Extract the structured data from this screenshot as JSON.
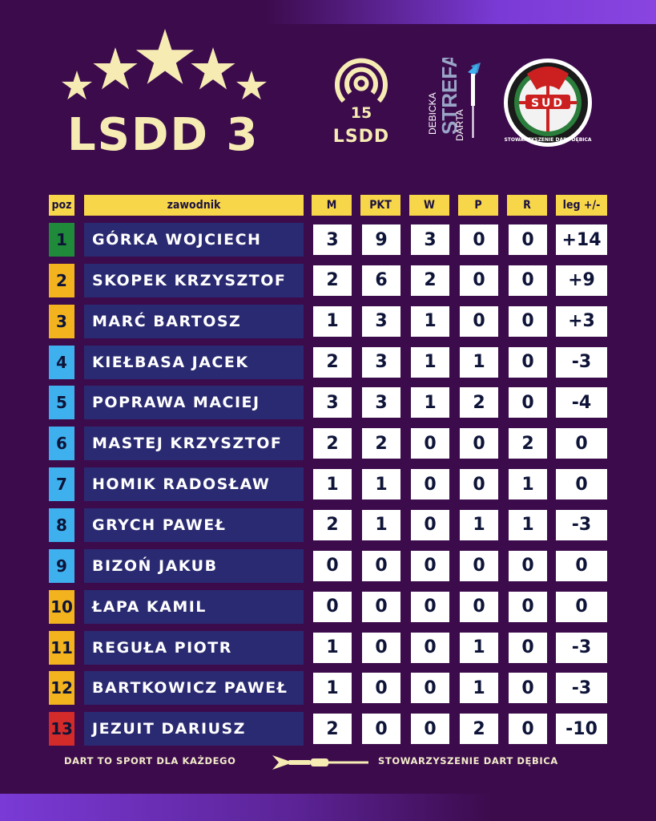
{
  "header": {
    "title": "LSDD 3",
    "logo_lsdd15": {
      "number": "15",
      "label": "LSDD"
    },
    "logo_strefa": {
      "word1": "DEBICKA",
      "word2": "STREFA",
      "word3": "DARTA"
    },
    "logo_sdd": {
      "letters": "SUD",
      "ring_text": "STOWARZYSZENIE DART DĘBICA"
    }
  },
  "table": {
    "headers": {
      "pos": "poz",
      "player": "zawodnik",
      "m": "M",
      "pkt": "PKT",
      "w": "W",
      "p": "P",
      "r": "R",
      "leg": "leg +/-"
    },
    "rows": [
      {
        "pos": "1",
        "name": "GÓRKA WOJCIECH",
        "m": "3",
        "pkt": "9",
        "w": "3",
        "p": "0",
        "r": "0",
        "leg": "+14",
        "pos_color": "#1f8a3a"
      },
      {
        "pos": "2",
        "name": "SKOPEK KRZYSZTOF",
        "m": "2",
        "pkt": "6",
        "w": "2",
        "p": "0",
        "r": "0",
        "leg": "+9",
        "pos_color": "#f2b31e"
      },
      {
        "pos": "3",
        "name": "MARĆ BARTOSZ",
        "m": "1",
        "pkt": "3",
        "w": "1",
        "p": "0",
        "r": "0",
        "leg": "+3",
        "pos_color": "#f2b31e"
      },
      {
        "pos": "4",
        "name": "KIEŁBASA JACEK",
        "m": "2",
        "pkt": "3",
        "w": "1",
        "p": "1",
        "r": "0",
        "leg": "-3",
        "pos_color": "#3fb0ee"
      },
      {
        "pos": "5",
        "name": "POPRAWA MACIEJ",
        "m": "3",
        "pkt": "3",
        "w": "1",
        "p": "2",
        "r": "0",
        "leg": "-4",
        "pos_color": "#3fb0ee"
      },
      {
        "pos": "6",
        "name": "MASTEJ KRZYSZTOF",
        "m": "2",
        "pkt": "2",
        "w": "0",
        "p": "0",
        "r": "2",
        "leg": "0",
        "pos_color": "#3fb0ee"
      },
      {
        "pos": "7",
        "name": "HOMIK RADOSŁAW",
        "m": "1",
        "pkt": "1",
        "w": "0",
        "p": "0",
        "r": "1",
        "leg": "0",
        "pos_color": "#3fb0ee"
      },
      {
        "pos": "8",
        "name": "GRYCH PAWEŁ",
        "m": "2",
        "pkt": "1",
        "w": "0",
        "p": "1",
        "r": "1",
        "leg": "-3",
        "pos_color": "#3fb0ee"
      },
      {
        "pos": "9",
        "name": "BIZOŃ JAKUB",
        "m": "0",
        "pkt": "0",
        "w": "0",
        "p": "0",
        "r": "0",
        "leg": "0",
        "pos_color": "#3fb0ee"
      },
      {
        "pos": "10",
        "name": "ŁAPA KAMIL",
        "m": "0",
        "pkt": "0",
        "w": "0",
        "p": "0",
        "r": "0",
        "leg": "0",
        "pos_color": "#f2b31e"
      },
      {
        "pos": "11",
        "name": "REGUŁA PIOTR",
        "m": "1",
        "pkt": "0",
        "w": "0",
        "p": "1",
        "r": "0",
        "leg": "-3",
        "pos_color": "#f2b31e"
      },
      {
        "pos": "12",
        "name": "BARTKOWICZ PAWEŁ",
        "m": "1",
        "pkt": "0",
        "w": "0",
        "p": "1",
        "r": "0",
        "leg": "-3",
        "pos_color": "#f2b31e"
      },
      {
        "pos": "13",
        "name": "JEZUIT DARIUSZ",
        "m": "2",
        "pkt": "0",
        "w": "0",
        "p": "2",
        "r": "0",
        "leg": "-10",
        "pos_color": "#d32a2a"
      }
    ]
  },
  "footer": {
    "left": "DART TO SPORT DLA KAŻDEGO",
    "right": "STOWARZYSZENIE DART DĘBICA"
  },
  "colors": {
    "background": "#3c0b4c",
    "accent_yellow": "#f8d64a",
    "name_cell": "#2a2a72",
    "cream": "#f6ecb3"
  }
}
